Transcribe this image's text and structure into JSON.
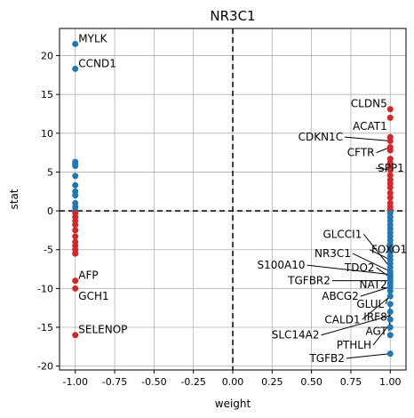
{
  "chart_data": {
    "type": "scatter",
    "title": "NR3C1",
    "xlabel": "weight",
    "ylabel": "stat",
    "xlim": [
      -1.1,
      1.1
    ],
    "ylim": [
      -20.5,
      23.5
    ],
    "xticks": [
      "-1.00",
      "-0.75",
      "-0.50",
      "-0.25",
      "0.00",
      "0.25",
      "0.50",
      "0.75",
      "1.00"
    ],
    "xtick_values": [
      -1.0,
      -0.75,
      -0.5,
      -0.25,
      0.0,
      0.25,
      0.5,
      0.75,
      1.0
    ],
    "yticks": [
      "20",
      "15",
      "10",
      "5",
      "0",
      "-5",
      "-10",
      "-15",
      "-20"
    ],
    "ytick_values": [
      20,
      15,
      10,
      5,
      0,
      -5,
      -10,
      -15,
      -20
    ],
    "grid": true,
    "reference_lines": {
      "x": 0,
      "y": 0,
      "style": "dashed"
    },
    "colors": {
      "blue": "#1f77b4",
      "red": "#d62728",
      "grid": "#b0b0b0"
    },
    "points_neg_weight": {
      "x": -1.0,
      "blue_y": [
        21.5,
        18.3,
        6.3,
        6.0,
        5.8,
        4.5,
        3.3,
        2.5,
        2.0,
        1.0,
        0.5,
        0.0
      ],
      "red_y": [
        -0.3,
        -0.8,
        -1.3,
        -1.8,
        -2.5,
        -3.3,
        -4.0,
        -4.5,
        -5.0,
        -5.5,
        -9.0,
        -10.0,
        -16.0
      ]
    },
    "points_pos_weight": {
      "x": 1.0,
      "red_y": [
        13.1,
        12.0,
        9.5,
        9.0,
        8.2,
        7.8,
        6.7,
        6.2,
        5.8,
        5.3,
        4.6,
        4.0,
        3.5,
        3.0,
        2.3,
        1.7,
        1.0,
        0.5,
        0.1
      ],
      "blue_y": [
        -0.3,
        -0.8,
        -1.3,
        -1.8,
        -2.3,
        -2.8,
        -3.3,
        -3.8,
        -4.3,
        -4.8,
        -5.3,
        -5.8,
        -6.3,
        -6.8,
        -7.3,
        -7.8,
        -8.2,
        -8.6,
        -9.0,
        -9.4,
        -9.8,
        -10.3,
        -11.0,
        -12.0,
        -13.0,
        -14.0,
        -15.0,
        -16.0,
        -18.4
      ]
    },
    "annotations": [
      {
        "text": "MYLK",
        "px": -1.0,
        "py": 21.5,
        "tx": -0.98,
        "ty": 22.2,
        "ha": "start"
      },
      {
        "text": "CCND1",
        "px": -1.0,
        "py": 18.3,
        "tx": -0.98,
        "ty": 19.0,
        "ha": "start"
      },
      {
        "text": "AFP",
        "px": -1.0,
        "py": -9.0,
        "tx": -0.98,
        "ty": -8.3,
        "ha": "start"
      },
      {
        "text": "GCH1",
        "px": -1.0,
        "py": -10.0,
        "tx": -0.98,
        "ty": -11.0,
        "ha": "start"
      },
      {
        "text": "SELENOP",
        "px": -1.0,
        "py": -16.0,
        "tx": -0.98,
        "ty": -15.3,
        "ha": "start"
      },
      {
        "text": "CLDN5",
        "px": 1.0,
        "py": 13.1,
        "tx": 0.98,
        "ty": 13.8,
        "ha": "end"
      },
      {
        "text": "ACAT1",
        "px": 1.0,
        "py": 9.5,
        "tx": 0.98,
        "ty": 10.9,
        "ha": "end"
      },
      {
        "text": "CDKN1C",
        "px": 1.0,
        "py": 9.0,
        "tx": 0.7,
        "ty": 9.5,
        "ha": "end"
      },
      {
        "text": "CFTR",
        "px": 1.0,
        "py": 8.2,
        "tx": 0.9,
        "ty": 7.5,
        "ha": "end"
      },
      {
        "text": "SPP1",
        "px": 1.0,
        "py": 5.3,
        "tx": 0.92,
        "ty": 5.5,
        "ha": "start"
      },
      {
        "text": "GLCCI1",
        "px": 1.0,
        "py": -7.3,
        "tx": 0.82,
        "ty": -3.0,
        "ha": "end"
      },
      {
        "text": "FOXO1",
        "px": 1.0,
        "py": -6.3,
        "tx": 0.88,
        "ty": -5.0,
        "ha": "start"
      },
      {
        "text": "NR3C1",
        "px": 1.0,
        "py": -7.8,
        "tx": 0.75,
        "ty": -5.5,
        "ha": "end"
      },
      {
        "text": "S100A10",
        "px": 1.0,
        "py": -8.2,
        "tx": 0.46,
        "ty": -7.0,
        "ha": "end"
      },
      {
        "text": "TDO2",
        "px": 1.0,
        "py": -8.6,
        "tx": 0.9,
        "ty": -7.3,
        "ha": "end"
      },
      {
        "text": "TGFBR2",
        "px": 1.0,
        "py": -9.0,
        "tx": 0.62,
        "ty": -9.0,
        "ha": "end"
      },
      {
        "text": "NAT2",
        "px": 1.0,
        "py": -9.4,
        "tx": 0.98,
        "ty": -9.5,
        "ha": "end"
      },
      {
        "text": "ABCG2",
        "px": 1.0,
        "py": -9.8,
        "tx": 0.8,
        "ty": -11.0,
        "ha": "end"
      },
      {
        "text": "GLUL",
        "px": 1.0,
        "py": -10.3,
        "tx": 0.96,
        "ty": -12.0,
        "ha": "end"
      },
      {
        "text": "CALD1",
        "px": 1.0,
        "py": -11.0,
        "tx": 0.81,
        "ty": -14.0,
        "ha": "end"
      },
      {
        "text": "IRF8",
        "px": 1.0,
        "py": -12.0,
        "tx": 0.98,
        "ty": -13.7,
        "ha": "end"
      },
      {
        "text": "AGT",
        "px": 1.0,
        "py": -13.0,
        "tx": 0.98,
        "ty": -15.5,
        "ha": "end"
      },
      {
        "text": "SLC14A2",
        "px": 1.0,
        "py": -13.5,
        "tx": 0.55,
        "ty": -16.0,
        "ha": "end"
      },
      {
        "text": "PTHLH",
        "px": 1.0,
        "py": -14.5,
        "tx": 0.88,
        "ty": -17.3,
        "ha": "end"
      },
      {
        "text": "TGFB2",
        "px": 1.0,
        "py": -18.4,
        "tx": 0.71,
        "ty": -19.0,
        "ha": "end"
      }
    ]
  }
}
